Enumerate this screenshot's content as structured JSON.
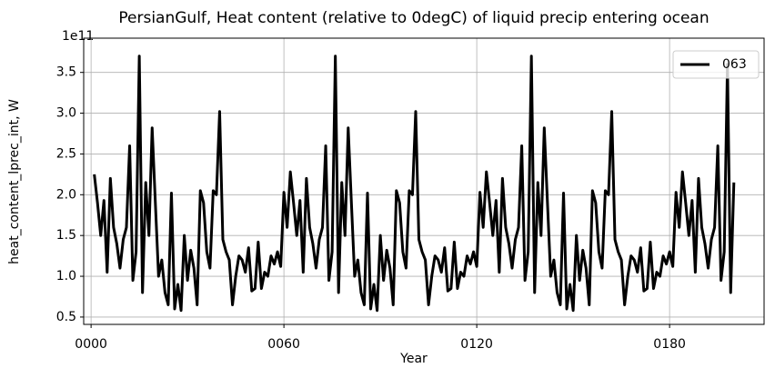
{
  "chart_data": {
    "type": "line",
    "title": "PersianGulf, Heat content (relative to 0degC) of liquid precip entering ocean",
    "x_label": "Year",
    "y_label": "heat_content_lprec_int, W",
    "y_offset_label": "1e11",
    "x": [
      1,
      2,
      3,
      4,
      5,
      6,
      7,
      8,
      9,
      10,
      11,
      12,
      13,
      14,
      15,
      16,
      17,
      18,
      19,
      20,
      21,
      22,
      23,
      24,
      25,
      26,
      27,
      28,
      29,
      30,
      31,
      32,
      33,
      34,
      35,
      36,
      37,
      38,
      39,
      40,
      41,
      42,
      43,
      44,
      45,
      46,
      47,
      48,
      49,
      50,
      51,
      52,
      53,
      54,
      55,
      56,
      57,
      58,
      59,
      60,
      61,
      62,
      63,
      64,
      65,
      66,
      67,
      68,
      69,
      70,
      71,
      72,
      73,
      74,
      75,
      76,
      77,
      78,
      79,
      80,
      81,
      82,
      83,
      84,
      85,
      86,
      87,
      88,
      89,
      90,
      91,
      92,
      93,
      94,
      95,
      96,
      97,
      98,
      99,
      100,
      101,
      102,
      103,
      104,
      105,
      106,
      107,
      108,
      109,
      110,
      111,
      112,
      113,
      114,
      115,
      116,
      117,
      118,
      119,
      120,
      121,
      122,
      123,
      124,
      125,
      126,
      127,
      128,
      129,
      130,
      131,
      132,
      133,
      134,
      135,
      136,
      137,
      138,
      139,
      140,
      141,
      142,
      143,
      144,
      145,
      146,
      147,
      148,
      149,
      150,
      151,
      152,
      153,
      154,
      155,
      156,
      157,
      158,
      159,
      160,
      161,
      162,
      163,
      164,
      165,
      166,
      167,
      168,
      169,
      170,
      171,
      172,
      173,
      174,
      175,
      176,
      177,
      178,
      179,
      180,
      181,
      182,
      183,
      184,
      185,
      186,
      187,
      188,
      189,
      190,
      191,
      192,
      193,
      194,
      195,
      196,
      197,
      198,
      199,
      200
    ],
    "series": [
      {
        "name": "063",
        "color": "#000000",
        "values": [
          2.25,
          1.9,
          1.5,
          1.93,
          1.05,
          2.2,
          1.6,
          1.4,
          1.1,
          1.45,
          1.6,
          2.6,
          0.95,
          1.3,
          3.7,
          0.8,
          2.15,
          1.5,
          2.82,
          1.9,
          1.0,
          1.2,
          0.8,
          0.65,
          2.02,
          0.6,
          0.9,
          0.58,
          1.5,
          0.95,
          1.32,
          1.1,
          0.65,
          2.05,
          1.9,
          1.3,
          1.1,
          2.05,
          2.0,
          3.02,
          1.45,
          1.3,
          1.2,
          0.65,
          1.0,
          1.25,
          1.2,
          1.05,
          1.35,
          0.82,
          0.85,
          1.42,
          0.85,
          1.05,
          1.0,
          1.25,
          1.15,
          1.3,
          1.12,
          2.03,
          1.6,
          2.28,
          1.9,
          1.5,
          1.93,
          1.05,
          2.2,
          1.6,
          1.4,
          1.1,
          1.45,
          1.6,
          2.6,
          0.95,
          1.3,
          3.7,
          0.8,
          2.15,
          1.5,
          2.82,
          1.9,
          1.0,
          1.2,
          0.8,
          0.65,
          2.02,
          0.6,
          0.9,
          0.58,
          1.5,
          0.95,
          1.32,
          1.1,
          0.65,
          2.05,
          1.9,
          1.3,
          1.1,
          2.05,
          2.0,
          3.02,
          1.45,
          1.3,
          1.2,
          0.65,
          1.0,
          1.25,
          1.2,
          1.05,
          1.35,
          0.82,
          0.85,
          1.42,
          0.85,
          1.05,
          1.0,
          1.25,
          1.15,
          1.3,
          1.12,
          2.03,
          1.6,
          2.28,
          1.9,
          1.5,
          1.93,
          1.05,
          2.2,
          1.6,
          1.4,
          1.1,
          1.45,
          1.6,
          2.6,
          0.95,
          1.3,
          3.7,
          0.8,
          2.15,
          1.5,
          2.82,
          1.9,
          1.0,
          1.2,
          0.8,
          0.65,
          2.02,
          0.6,
          0.9,
          0.58,
          1.5,
          0.95,
          1.32,
          1.1,
          0.65,
          2.05,
          1.9,
          1.3,
          1.1,
          2.05,
          2.0,
          3.02,
          1.45,
          1.3,
          1.2,
          0.65,
          1.0,
          1.25,
          1.2,
          1.05,
          1.35,
          0.82,
          0.85,
          1.42,
          0.85,
          1.05,
          1.0,
          1.25,
          1.15,
          1.3,
          1.12,
          2.03,
          1.6,
          2.28,
          1.9,
          1.5,
          1.93,
          1.05,
          2.2,
          1.6,
          1.4,
          1.1,
          1.45,
          1.6,
          2.6,
          0.95,
          1.3,
          3.6,
          0.8,
          2.15
        ]
      }
    ],
    "xlim": [
      -2.3,
      209.4
    ],
    "ylim": [
      0.41,
      3.92
    ],
    "xticks": [
      {
        "value": 0,
        "label": "0000"
      },
      {
        "value": 60,
        "label": "0060"
      },
      {
        "value": 120,
        "label": "0120"
      },
      {
        "value": 180,
        "label": "0180"
      }
    ],
    "yticks": [
      0.5,
      {
        "value": 1,
        "label": "1.0"
      },
      1.5,
      {
        "value": 2,
        "label": "2.0"
      },
      2.5,
      {
        "value": 3,
        "label": "3.0"
      },
      3.5
    ],
    "grid": true,
    "legend": "upper right"
  }
}
